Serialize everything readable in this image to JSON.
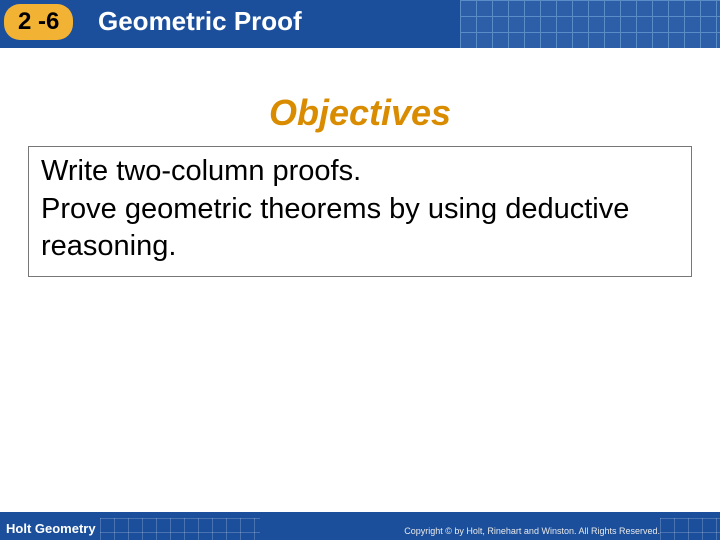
{
  "header": {
    "section_number": "2 -6",
    "title": "Geometric Proof",
    "bg_color": "#1b4f9c",
    "badge_bg": "#f2b233"
  },
  "objectives": {
    "heading": "Objectives",
    "heading_color": "#d98c00",
    "line1": "Write two-column proofs.",
    "line2": "Prove geometric theorems by using deductive reasoning."
  },
  "footer": {
    "label": "Holt Geometry",
    "copyright": "Copyright © by Holt, Rinehart and Winston. All Rights Reserved.",
    "bg_color": "#1b4f9c"
  }
}
